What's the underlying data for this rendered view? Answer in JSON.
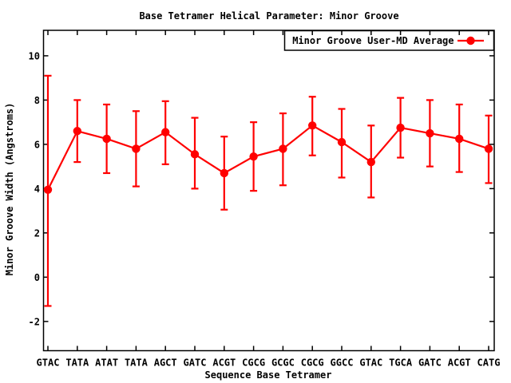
{
  "chart_data": {
    "type": "line",
    "title": "Base Tetramer Helical Parameter: Minor Groove",
    "xlabel": "Sequence Base Tetramer",
    "ylabel": "Minor Groove Width (Angstroms)",
    "grid": false,
    "background": "#ffffff",
    "border_color": "#000000",
    "legend": {
      "position": "top-right-inside",
      "box": true
    },
    "categories": [
      "GTAC",
      "TATA",
      "ATAT",
      "TATA",
      "AGCT",
      "GATC",
      "ACGT",
      "CGCG",
      "GCGC",
      "CGCG",
      "GGCC",
      "GTAC",
      "TGCA",
      "GATC",
      "ACGT",
      "CATG"
    ],
    "yticks": [
      -2,
      0,
      2,
      4,
      6,
      8,
      10
    ],
    "ylim": [
      -3.32,
      11.15
    ],
    "series": [
      {
        "name": "Minor Groove User-MD Average",
        "color": "#ff0000",
        "marker": "filled-circle",
        "values": [
          3.95,
          6.6,
          6.25,
          5.8,
          6.55,
          5.55,
          4.7,
          5.45,
          5.8,
          6.85,
          6.1,
          5.2,
          6.75,
          6.5,
          6.25,
          5.8
        ],
        "error_upper": [
          9.1,
          8.0,
          7.8,
          7.5,
          7.95,
          7.2,
          6.35,
          7.0,
          7.4,
          8.15,
          7.6,
          6.85,
          8.1,
          8.0,
          7.8,
          7.3
        ],
        "error_lower": [
          -1.3,
          5.2,
          4.7,
          4.1,
          5.1,
          4.0,
          3.05,
          3.9,
          4.15,
          5.5,
          4.5,
          3.6,
          5.4,
          5.0,
          4.75,
          4.25
        ]
      }
    ]
  }
}
